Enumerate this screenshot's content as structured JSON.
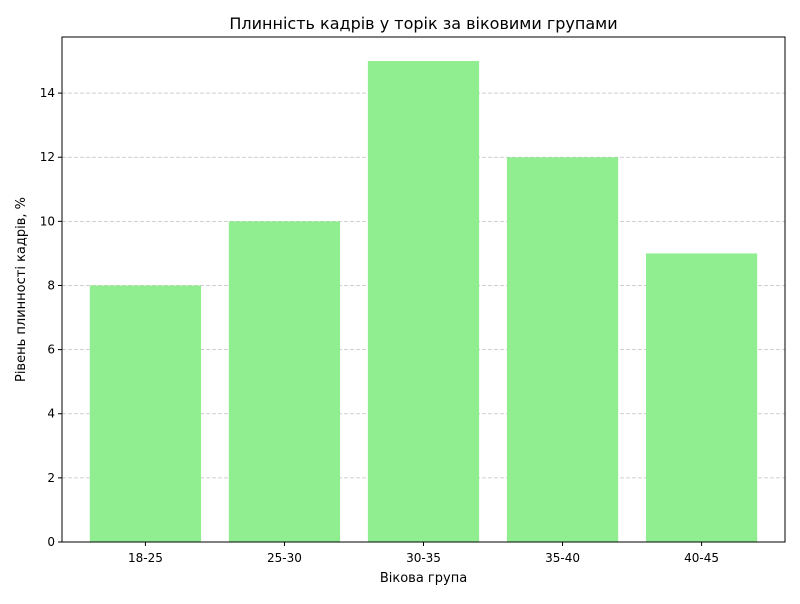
{
  "chart_data": {
    "type": "bar",
    "title": "Плинність кадрів у торік за віковими групами",
    "xlabel": "Вікова група",
    "ylabel": "Рівень плинності кадрів, %",
    "categories": [
      "18-25",
      "25-30",
      "30-35",
      "35-40",
      "40-45"
    ],
    "values": [
      8,
      10,
      15,
      12,
      9
    ],
    "ylim": [
      0,
      15.75
    ],
    "yticks": [
      0,
      2,
      4,
      6,
      8,
      10,
      12,
      14
    ],
    "grid": "y-dashed",
    "bar_color": "#90ee90",
    "grid_color": "#c0c0c0"
  }
}
